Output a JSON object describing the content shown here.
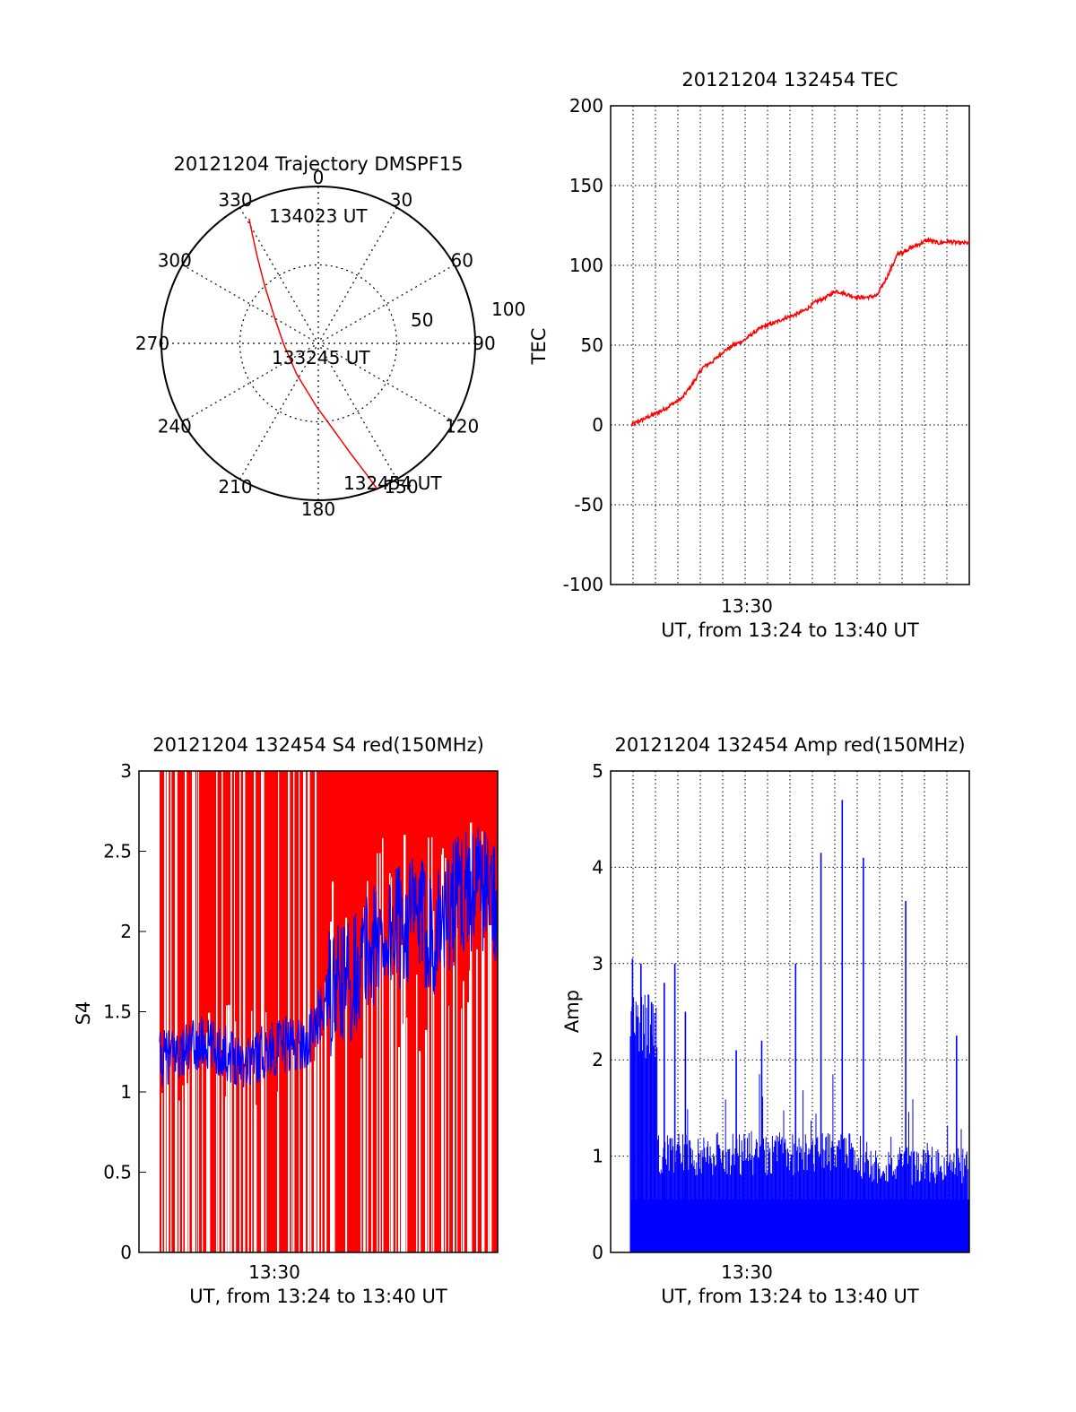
{
  "colors": {
    "primary": "#ff0000",
    "secondary": "#0000ff",
    "axis": "#000000"
  },
  "chart_data": [
    {
      "type": "polar",
      "title": "20121204 Trajectory DMSPF15",
      "azimuth_labels": [
        "0",
        "30",
        "60",
        "90",
        "120",
        "150",
        "180",
        "210",
        "240",
        "270",
        "300",
        "330"
      ],
      "radius_labels": [
        "50",
        "100"
      ],
      "elevation_scale": "90 at center, 0 at rim",
      "trajectory_start_label": "132454 UT",
      "trajectory_mid_label": "133245 UT",
      "trajectory_end_label": "134023 UT",
      "trajectory": [
        {
          "azimuth": 158,
          "zenith": 100
        },
        {
          "azimuth": 160,
          "zenith": 88
        },
        {
          "azimuth": 164,
          "zenith": 72
        },
        {
          "azimuth": 170,
          "zenith": 56
        },
        {
          "azimuth": 182,
          "zenith": 40
        },
        {
          "azimuth": 215,
          "zenith": 24
        },
        {
          "azimuth": 268,
          "zenith": 22
        },
        {
          "azimuth": 300,
          "zenith": 32
        },
        {
          "azimuth": 317,
          "zenith": 50
        },
        {
          "azimuth": 325,
          "zenith": 68
        },
        {
          "azimuth": 329,
          "zenith": 82
        },
        {
          "azimuth": 331,
          "zenith": 91
        }
      ]
    },
    {
      "type": "line",
      "title": "20121204 132454 TEC",
      "ylabel": "TEC",
      "xlabel": "UT, from 13:24 to 13:40 UT",
      "x_tick_labels": [
        "13:30"
      ],
      "y_tick_labels": [
        "-100",
        "-50",
        "0",
        "50",
        "100",
        "150",
        "200"
      ],
      "xlim": [
        1,
        17.5
      ],
      "ylim": [
        -100,
        200
      ],
      "grid": true,
      "series": [
        {
          "x": [
            1.0,
            1.5,
            2.0,
            2.5,
            3.0,
            3.5,
            4.0,
            4.5,
            5.0,
            5.5,
            6.0,
            6.5,
            7.0,
            7.5,
            8.0,
            8.5,
            9.0,
            9.5,
            10.0,
            10.5,
            11.0,
            11.5,
            12.0,
            12.5,
            13.0,
            13.5,
            14.0,
            14.2,
            14.5,
            15.0,
            15.5,
            16.0,
            16.5,
            17.0,
            17.5
          ],
          "y": [
            0,
            3,
            6,
            9,
            13,
            17,
            26,
            36,
            40,
            46,
            50,
            53,
            58,
            62,
            64,
            67,
            69,
            72,
            77,
            80,
            84,
            82,
            80,
            80,
            81,
            93,
            107,
            108,
            110,
            113,
            116,
            114,
            115,
            114,
            114
          ]
        }
      ]
    },
    {
      "type": "line",
      "title": "20121204 132454 S4 red(150MHz)",
      "ylabel": "S4",
      "xlabel": "UT, from 13:24 to 13:40 UT",
      "x_tick_labels": [
        "13:30"
      ],
      "y_tick_labels": [
        "0",
        "0.5",
        "1",
        "1.5",
        "2",
        "2.5",
        "3"
      ],
      "xlim": [
        0,
        17
      ],
      "ylim": [
        0,
        3
      ],
      "grid": false,
      "series": [
        {
          "x": [
            1,
            2,
            3,
            4,
            5,
            6,
            7,
            8,
            9,
            10,
            11,
            12,
            13,
            14,
            15,
            16,
            17
          ],
          "y": [
            1.2,
            1.25,
            1.3,
            1.25,
            1.2,
            1.25,
            1.3,
            1.3,
            1.6,
            1.7,
            1.9,
            2.0,
            2.1,
            2.0,
            2.2,
            2.3,
            2.2
          ]
        }
      ]
    },
    {
      "type": "bar",
      "title": "20121204 132454 Amp red(150MHz)",
      "ylabel": "Amp",
      "xlabel": "UT, from 13:24 to 13:40 UT",
      "x_tick_labels": [
        "13:30"
      ],
      "y_tick_labels": [
        "0",
        "1",
        "2",
        "3",
        "4",
        "5"
      ],
      "xlim": [
        0,
        17
      ],
      "ylim": [
        0,
        5
      ],
      "grid": true,
      "peaks": [
        {
          "x": 1.1,
          "y": 3.05
        },
        {
          "x": 1.5,
          "y": 3.0
        },
        {
          "x": 2.0,
          "y": 2.6
        },
        {
          "x": 2.6,
          "y": 2.8
        },
        {
          "x": 3.1,
          "y": 3.0
        },
        {
          "x": 3.6,
          "y": 2.5
        },
        {
          "x": 6.0,
          "y": 2.1
        },
        {
          "x": 7.2,
          "y": 2.2
        },
        {
          "x": 8.8,
          "y": 3.0
        },
        {
          "x": 10.0,
          "y": 4.15
        },
        {
          "x": 11.0,
          "y": 4.7
        },
        {
          "x": 12.0,
          "y": 4.1
        },
        {
          "x": 14.0,
          "y": 3.65
        },
        {
          "x": 16.4,
          "y": 2.25
        }
      ]
    }
  ]
}
